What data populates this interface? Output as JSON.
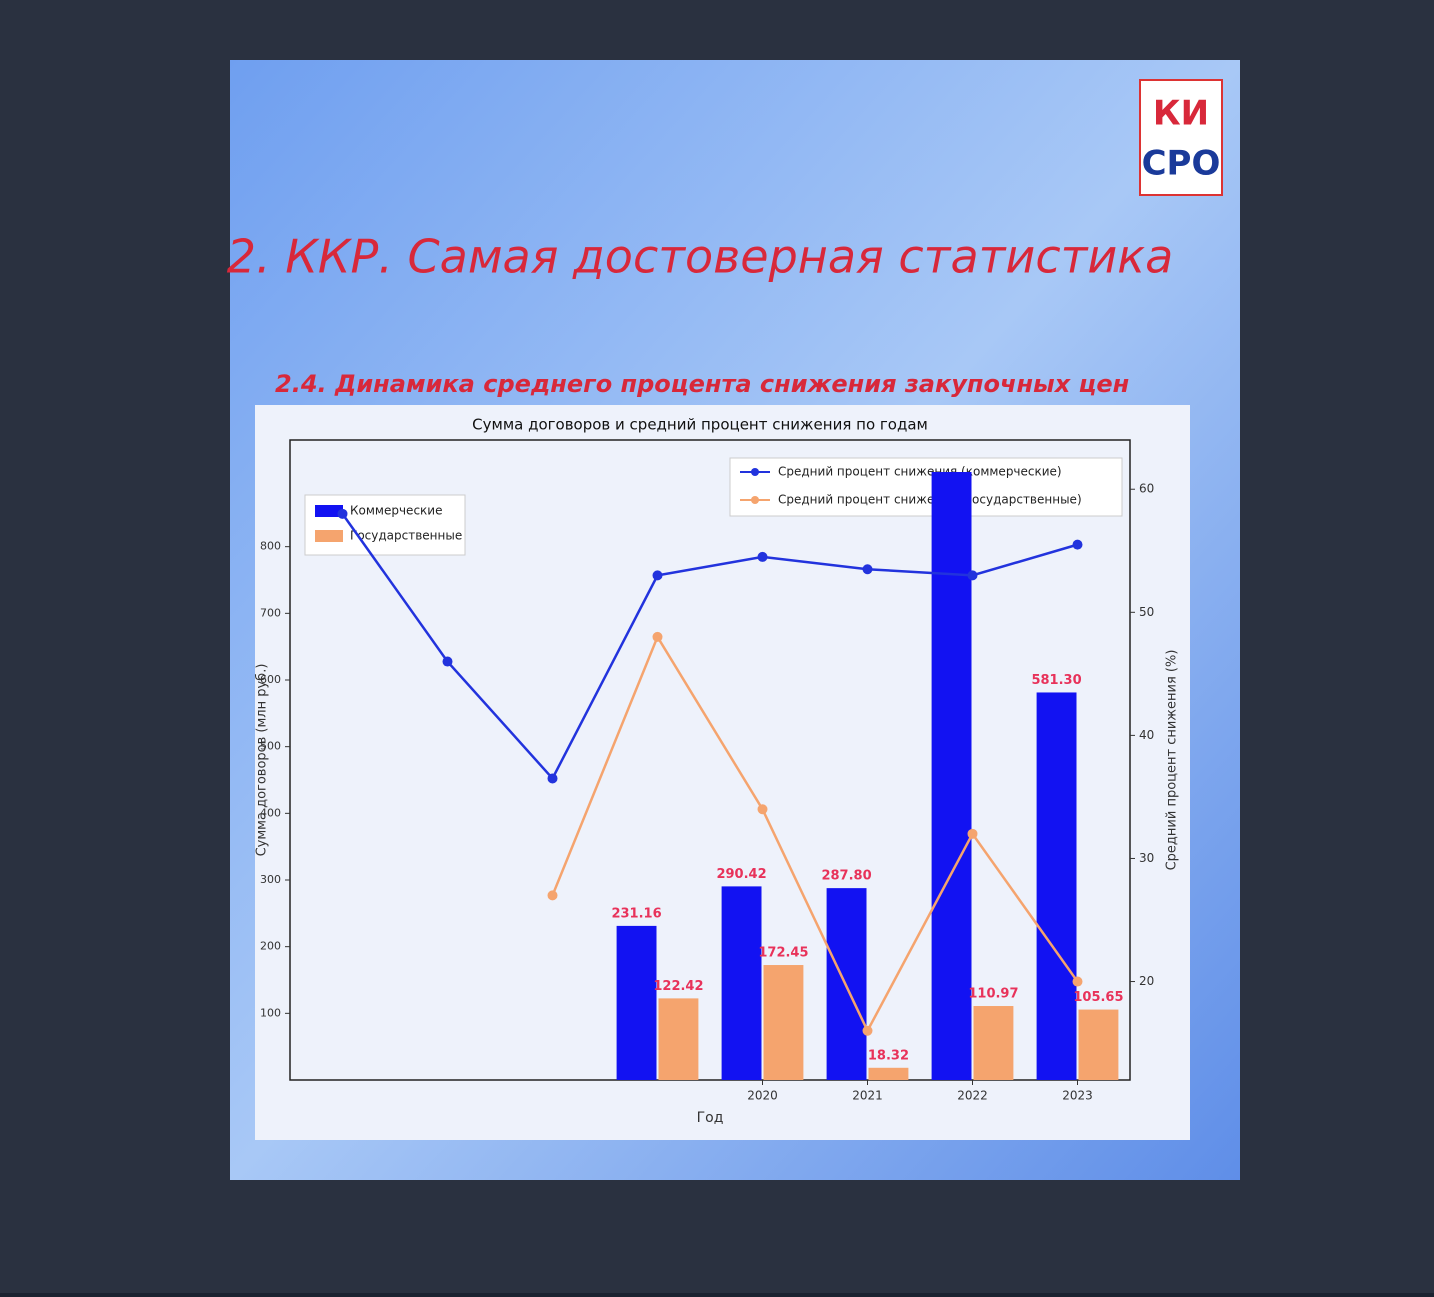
{
  "slide": {
    "title": "2. ККР. Самая достоверная статистика",
    "subtitle": "2.4. Динамика среднего процента снижения закупочных цен",
    "logo": [
      "КИ",
      "СРО"
    ]
  },
  "chart_data": {
    "type": "bar",
    "title": "Сумма договоров и средний процент снижения по годам",
    "xlabel": "Год",
    "ylabel": "Сумма договоров (млн руб.)",
    "y2label": "Средний процент снижения (%)",
    "categories": [
      null,
      null,
      null,
      null,
      "2020",
      "2021",
      "2022",
      "2023"
    ],
    "series": [
      {
        "name": "Коммерческие",
        "type": "bar",
        "color": "#1212f2",
        "values": [
          null,
          null,
          null,
          231.16,
          290.42,
          287.8,
          912,
          581.3
        ],
        "value_labels": [
          null,
          null,
          null,
          "231.16",
          "290.42",
          "287.80",
          null,
          "581.30"
        ]
      },
      {
        "name": "Государственные",
        "type": "bar",
        "color": "#f5a46e",
        "values": [
          null,
          null,
          null,
          122.42,
          172.45,
          18.32,
          110.97,
          105.65
        ],
        "value_labels": [
          null,
          null,
          null,
          "122.42",
          "172.45",
          "18.32",
          "110.97",
          "105.65"
        ]
      },
      {
        "name": "Средний процент снижения (коммерческие)",
        "type": "line",
        "axis": "y2",
        "color": "#2233dd",
        "values": [
          58,
          46,
          36.5,
          53,
          54.5,
          53.5,
          53,
          55.5
        ]
      },
      {
        "name": "Средний процент снижения (государственные)",
        "type": "line",
        "axis": "y2",
        "color": "#f5a46e",
        "values": [
          null,
          null,
          27,
          48,
          34,
          16,
          32,
          20
        ]
      }
    ],
    "ylim": [
      0,
      960
    ],
    "yticks": [
      100,
      200,
      300,
      400,
      500,
      600,
      700,
      800
    ],
    "y2lim": [
      12,
      64
    ],
    "y2ticks": [
      20,
      30,
      40,
      50,
      60
    ],
    "value_label_color": "#e8325a"
  }
}
